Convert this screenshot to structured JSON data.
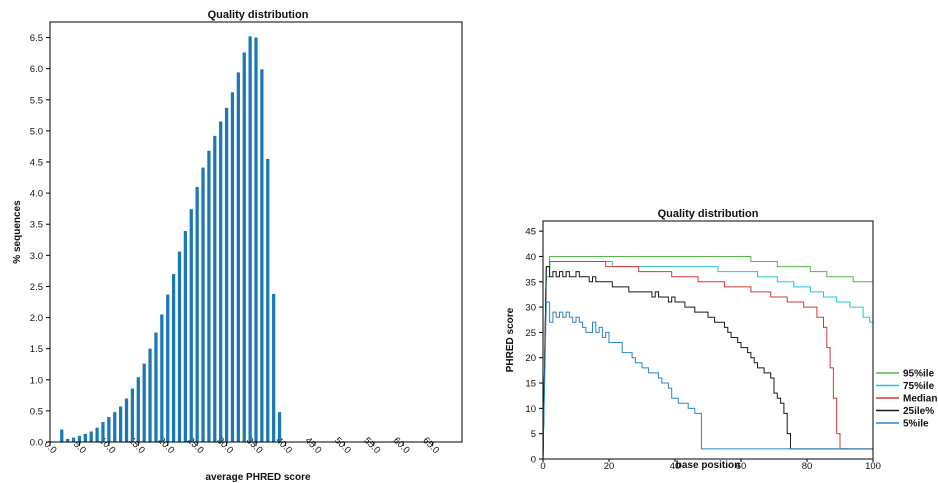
{
  "chart_data": [
    {
      "type": "bar",
      "title": "Quality distribution",
      "xlabel": "average PHRED score",
      "ylabel": "% sequences",
      "xlim": [
        0,
        70
      ],
      "ylim": [
        0,
        6.75
      ],
      "xticks": [
        "0.0",
        "5.0",
        "10.0",
        "15.0",
        "20.0",
        "25.0",
        "30.0",
        "35.0",
        "40.0",
        "45.0",
        "50.0",
        "55.0",
        "60.0",
        "65.0"
      ],
      "yticks": [
        "0.0",
        "0.5",
        "1.0",
        "1.5",
        "2.0",
        "2.5",
        "3.0",
        "3.5",
        "4.0",
        "4.5",
        "5.0",
        "5.5",
        "6.0",
        "6.5"
      ],
      "bar_color": "#1a78b5",
      "x": [
        2,
        3,
        4,
        5,
        6,
        7,
        8,
        9,
        10,
        11,
        12,
        13,
        14,
        15,
        16,
        17,
        18,
        19,
        20,
        21,
        22,
        23,
        24,
        25,
        26,
        27,
        28,
        29,
        30,
        31,
        32,
        33,
        34,
        35,
        36,
        37,
        38,
        39
      ],
      "values": [
        0.2,
        0.05,
        0.07,
        0.1,
        0.13,
        0.17,
        0.23,
        0.32,
        0.4,
        0.48,
        0.57,
        0.7,
        0.86,
        1.04,
        1.26,
        1.5,
        1.76,
        2.05,
        2.37,
        2.7,
        3.06,
        3.39,
        3.74,
        4.1,
        4.41,
        4.68,
        4.92,
        5.15,
        5.37,
        5.62,
        5.94,
        6.26,
        6.52,
        6.5,
        5.99,
        4.55,
        2.38,
        0.48
      ]
    },
    {
      "type": "line",
      "title": "Quality distribution",
      "xlabel": "base position",
      "ylabel": "PHRED score",
      "xlim": [
        0,
        100
      ],
      "ylim": [
        0,
        47
      ],
      "xticks": [
        "0",
        "20",
        "40",
        "60",
        "80",
        "100"
      ],
      "yticks": [
        "0",
        "5",
        "10",
        "15",
        "20",
        "25",
        "30",
        "35",
        "40",
        "45"
      ],
      "legend_position": "right",
      "series": [
        {
          "name": "95%ile",
          "color": "#55b848",
          "x": [
            0,
            1,
            2,
            62,
            63,
            70,
            71,
            80,
            81,
            85,
            86,
            93,
            94,
            99,
            100
          ],
          "y": [
            0,
            38,
            40,
            40,
            39,
            39,
            38,
            38,
            37,
            37,
            36,
            36,
            35,
            35,
            34
          ]
        },
        {
          "name": "75%ile",
          "color": "#22c7d6",
          "x": [
            0,
            1,
            2,
            20,
            21,
            52,
            53,
            64,
            65,
            70,
            71,
            75,
            76,
            80,
            81,
            84,
            85,
            88,
            89,
            92,
            93,
            96,
            97,
            99,
            100
          ],
          "y": [
            0,
            36,
            39,
            39,
            38,
            38,
            37,
            37,
            36,
            36,
            35,
            35,
            34,
            34,
            33,
            33,
            32,
            32,
            31,
            31,
            30,
            30,
            28,
            27,
            24
          ]
        },
        {
          "name": "Median",
          "color": "#d23a3a",
          "x": [
            0,
            1,
            2,
            18,
            19,
            28,
            29,
            38,
            39,
            46,
            47,
            54,
            55,
            62,
            63,
            68,
            69,
            73,
            74,
            78,
            79,
            82,
            83,
            85,
            86,
            87,
            88,
            89,
            90,
            100
          ],
          "y": [
            0,
            38,
            39,
            39,
            38,
            38,
            37,
            37,
            36,
            36,
            35,
            35,
            34,
            34,
            33,
            33,
            32,
            32,
            31,
            31,
            30,
            30,
            28,
            26,
            22,
            18,
            12,
            5,
            2,
            2
          ]
        },
        {
          "name": "25ile%",
          "color": "#1a1a1a",
          "x": [
            0,
            1,
            2,
            3,
            4,
            5,
            6,
            7,
            8,
            9,
            10,
            11,
            12,
            13,
            14,
            15,
            16,
            17,
            18,
            19,
            20,
            21,
            22,
            23,
            24,
            25,
            26,
            27,
            28,
            29,
            30,
            31,
            32,
            33,
            34,
            35,
            36,
            37,
            38,
            39,
            40,
            41,
            42,
            43,
            44,
            45,
            46,
            47,
            48,
            49,
            50,
            51,
            52,
            53,
            54,
            55,
            56,
            57,
            58,
            59,
            60,
            61,
            62,
            63,
            64,
            65,
            66,
            67,
            68,
            69,
            70,
            71,
            72,
            73,
            74,
            75,
            76,
            100
          ],
          "y": [
            0,
            38,
            36,
            37,
            36,
            37,
            36,
            37,
            36,
            36,
            37,
            36,
            36,
            36,
            35,
            36,
            35,
            35,
            35,
            35,
            35,
            34,
            34,
            34,
            34,
            34,
            33,
            33,
            33,
            33,
            33,
            33,
            33,
            32,
            33,
            32,
            32,
            32,
            31,
            32,
            31,
            31,
            31,
            30,
            30,
            30,
            29,
            29,
            29,
            29,
            28,
            28,
            27,
            27,
            27,
            26,
            25,
            24,
            24,
            23,
            22,
            22,
            21,
            20,
            19,
            18,
            18,
            17,
            17,
            16,
            13,
            12,
            11,
            9,
            5,
            2,
            2,
            2
          ]
        },
        {
          "name": "5%ile",
          "color": "#2b86c8",
          "x": [
            0,
            1,
            2,
            3,
            4,
            5,
            6,
            7,
            8,
            9,
            10,
            11,
            12,
            13,
            14,
            15,
            16,
            17,
            18,
            19,
            20,
            21,
            22,
            23,
            24,
            25,
            26,
            27,
            28,
            29,
            30,
            31,
            32,
            33,
            34,
            35,
            36,
            37,
            38,
            39,
            40,
            41,
            42,
            43,
            44,
            45,
            46,
            47,
            48,
            49,
            100
          ],
          "y": [
            0,
            31,
            27,
            29,
            28,
            29,
            28,
            29,
            28,
            27,
            28,
            27,
            26,
            25,
            25,
            27,
            25,
            26,
            24,
            25,
            23,
            23,
            23,
            23,
            21,
            21,
            21,
            20,
            19,
            19,
            18,
            18,
            17,
            17,
            17,
            16,
            15,
            15,
            14,
            12,
            12,
            11,
            11,
            11,
            10,
            10,
            9,
            9,
            2,
            2,
            2
          ]
        }
      ]
    }
  ]
}
